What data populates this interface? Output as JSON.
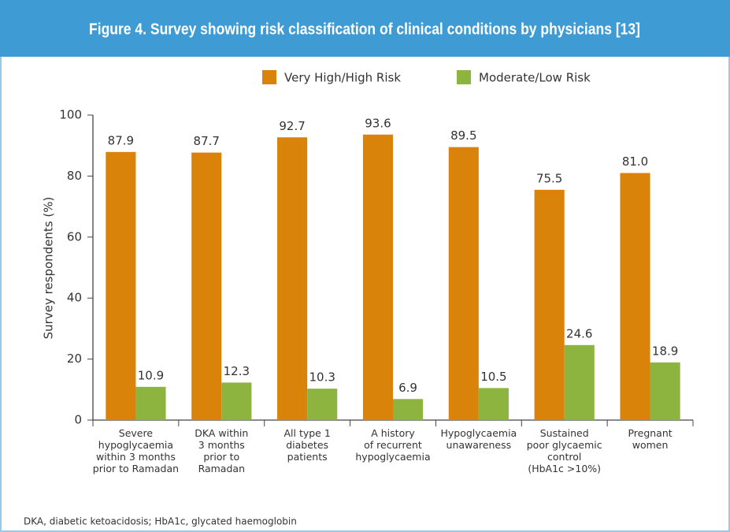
{
  "chart_data": {
    "type": "bar",
    "title": "Figure 4. Survey showing risk classification of clinical conditions by physicians [13]",
    "ylabel": "Survey respondents (%)",
    "footnote": "DKA, diabetic ketoacidosis; HbA1c, glycated haemoglobin",
    "categories": [
      "Severe\nhypoglycaemia\nwithin 3 months\nprior to Ramadan",
      "DKA within\n3 months\nprior to\nRamadan",
      "All type 1\ndiabetes\npatients",
      "A history\nof recurrent\nhypoglycaemia",
      "Hypoglycaemia\nunawareness",
      "Sustained\npoor glycaemic\ncontrol\n(HbA1c >10%)",
      "Pregnant\nwomen"
    ],
    "series": [
      {
        "name": "Very High/High Risk",
        "color": "#d9830b",
        "values": [
          87.9,
          87.7,
          92.7,
          93.6,
          89.5,
          75.5,
          81.0
        ],
        "value_labels": [
          "87.9",
          "87.7",
          "92.7",
          "93.6",
          "89.5",
          "75.5",
          "81.0"
        ]
      },
      {
        "name": "Moderate/Low Risk",
        "color": "#8db43e",
        "values": [
          10.9,
          12.3,
          10.3,
          6.9,
          10.5,
          24.6,
          18.9
        ],
        "value_labels": [
          "10.9",
          "12.3",
          "10.3",
          "6.9",
          "10.5",
          "24.6",
          "18.9"
        ]
      }
    ],
    "ylim": [
      0,
      100
    ],
    "yticks": [
      0,
      20,
      40,
      60,
      80,
      100
    ],
    "grid": false
  }
}
